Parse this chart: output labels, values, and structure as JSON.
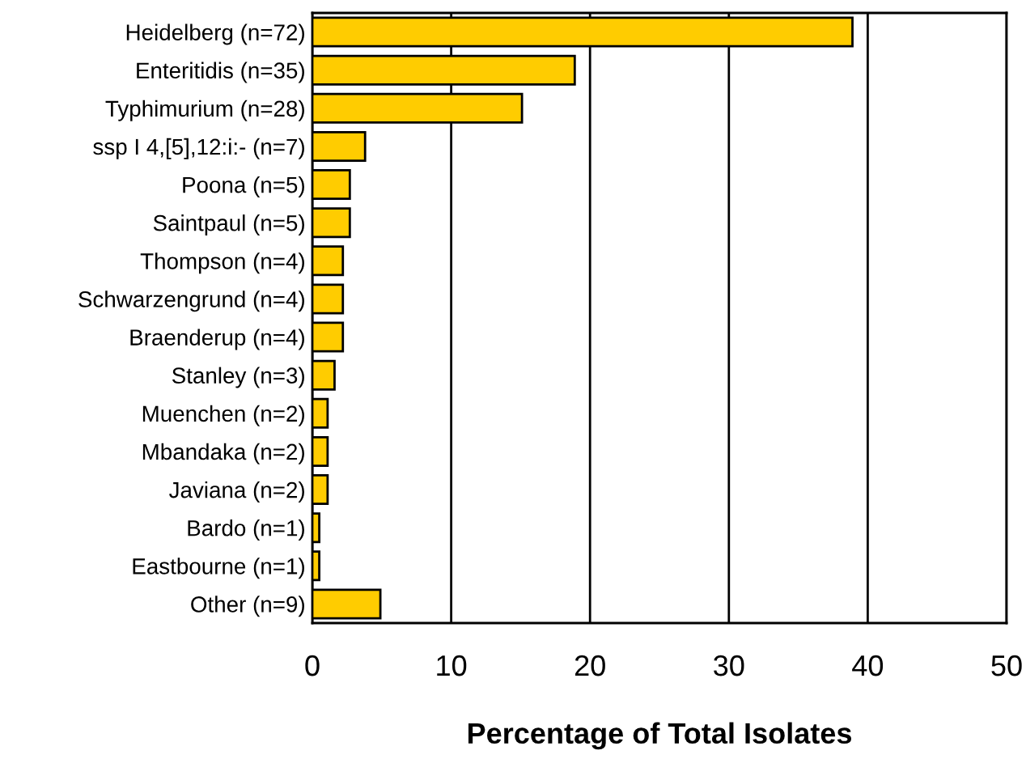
{
  "chart_data": {
    "type": "bar",
    "orientation": "horizontal",
    "xlabel": "Percentage of Total Isolates",
    "categories": [
      "Heidelberg (n=72)",
      "Enteritidis (n=35)",
      "Typhimurium (n=28)",
      "ssp I 4,[5],12:i:- (n=7)",
      "Poona (n=5)",
      "Saintpaul (n=5)",
      "Thompson (n=4)",
      "Schwarzengrund (n=4)",
      "Braenderup (n=4)",
      "Stanley (n=3)",
      "Muenchen (n=2)",
      "Mbandaka (n=2)",
      "Javiana (n=2)",
      "Bardo (n=1)",
      "Eastbourne (n=1)",
      "Other (n=9)"
    ],
    "values": [
      38.9,
      18.9,
      15.1,
      3.8,
      2.7,
      2.7,
      2.2,
      2.2,
      2.2,
      1.6,
      1.1,
      1.1,
      1.1,
      0.5,
      0.5,
      4.9
    ],
    "color": "#ffcc00",
    "xlim": [
      0,
      50
    ],
    "xticks": [
      0,
      10,
      20,
      30,
      40,
      50
    ],
    "grid": "x"
  }
}
